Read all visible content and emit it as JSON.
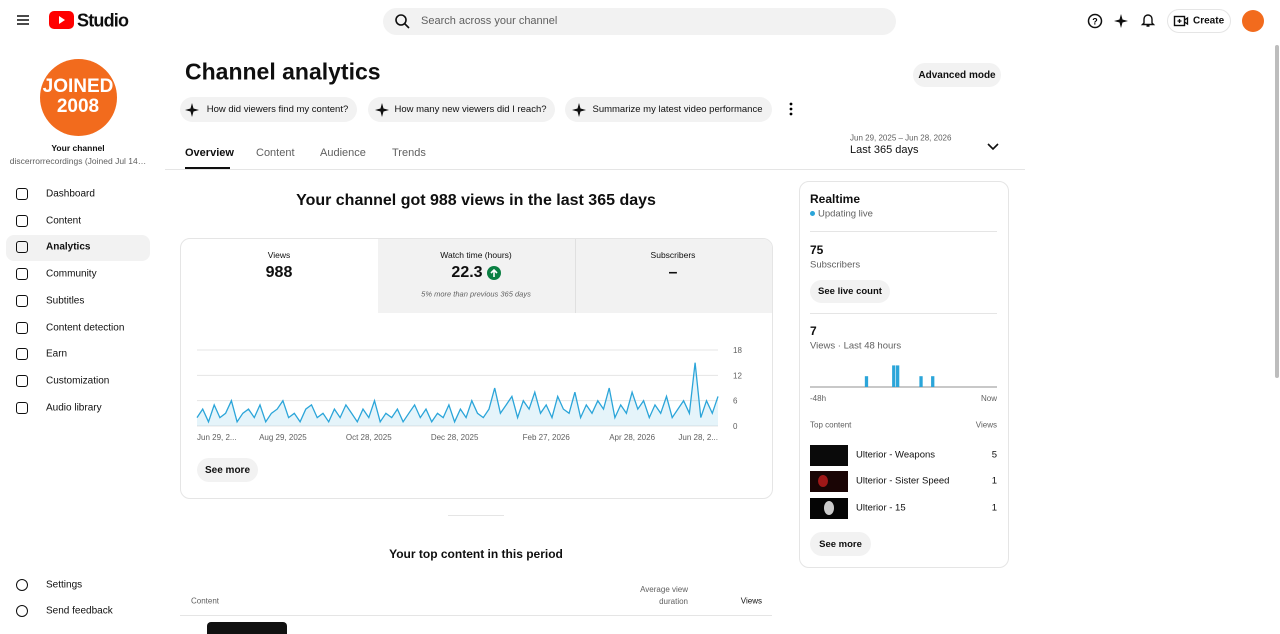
{
  "header": {
    "brand": "Studio",
    "search_placeholder": "Search across your channel",
    "create": "Create"
  },
  "sidebar": {
    "avatar": [
      "JOINED",
      "2008"
    ],
    "your_channel": "Your channel",
    "channel_name": "discerrorrecordings (Joined Jul 14…",
    "nav": [
      "Dashboard",
      "Content",
      "Analytics",
      "Community",
      "Subtitles",
      "Content detection",
      "Earn",
      "Customization",
      "Audio library"
    ],
    "footer": [
      "Settings",
      "Send feedback"
    ]
  },
  "main": {
    "title": "Channel analytics",
    "advanced_mode": "Advanced mode",
    "prompts": [
      "How did viewers find my content?",
      "How many new viewers did I reach?",
      "Summarize my latest video performance"
    ],
    "tabs": [
      "Overview",
      "Content",
      "Audience",
      "Trends"
    ],
    "date_range": "Jun 29, 2025 – Jun 28, 2026",
    "period": "Last 365 days",
    "headline": "Your channel got 988 views in the last 365 days",
    "metrics": [
      {
        "label": "Views",
        "value": 988
      },
      {
        "label": "Watch time (hours)",
        "value": 22.3,
        "note": "5% more than previous 365 days"
      },
      {
        "label": "Subscribers",
        "value": "–"
      }
    ],
    "see_more": "See more",
    "top_content_title": "Your top content in this period",
    "table_header": [
      "Content",
      "Average view duration",
      "Views"
    ]
  },
  "realtime": {
    "title": "Realtime",
    "status": "Updating live",
    "subscribers": 75,
    "subscribers_label": "Subscribers",
    "see_live_count": "See live count",
    "views": 7,
    "views_label": "Views · Last 48 hours",
    "top_content_label": "Top content",
    "views_header": "Views",
    "top_content": [
      {
        "title": "Ulterior - Weapons",
        "views": 5
      },
      {
        "title": "Ulterior - Sister Speed",
        "views": 1
      },
      {
        "title": "Ulterior - 15",
        "views": 1
      }
    ],
    "see_more": "See more"
  },
  "chart_data": [
    {
      "type": "line",
      "color": "#2ba5d9",
      "values": [
        2,
        4,
        1,
        5,
        2,
        3,
        6,
        1,
        3,
        4,
        2,
        5,
        1,
        3,
        4,
        6,
        2,
        3,
        1,
        4,
        5,
        2,
        3,
        1,
        4,
        2,
        5,
        3,
        1,
        4,
        2,
        6,
        1,
        3,
        2,
        4,
        1,
        3,
        5,
        2,
        4,
        1,
        3,
        2,
        5,
        1,
        4,
        2,
        6,
        3,
        2,
        4,
        9,
        3,
        5,
        7,
        2,
        6,
        4,
        8,
        3,
        5,
        2,
        7,
        4,
        3,
        8,
        2,
        5,
        3,
        6,
        4,
        9,
        2,
        5,
        3,
        8,
        4,
        6,
        2,
        5,
        3,
        7,
        2,
        4,
        6,
        3,
        15,
        2,
        6,
        3,
        7
      ],
      "xlim": [
        0,
        91
      ],
      "xticks": [
        {
          "value": 0,
          "label": "Jun 29, 2..."
        },
        {
          "value": 15,
          "label": "Aug 29, 2025"
        },
        {
          "value": 30,
          "label": "Oct 28, 2025"
        },
        {
          "value": 45,
          "label": "Dec 28, 2025"
        },
        {
          "value": 61,
          "label": "Feb 27, 2026"
        },
        {
          "value": 76,
          "label": "Apr 28, 2026"
        },
        {
          "value": 91,
          "label": "Jun 28, 2..."
        }
      ],
      "ylim": [
        0,
        18
      ],
      "yticks": [
        0,
        6,
        12,
        18
      ],
      "grid": true
    },
    {
      "type": "bar",
      "color": "#2ba5d9",
      "values": [
        0,
        0,
        0,
        0,
        0,
        0,
        0,
        0,
        0,
        0,
        0,
        0,
        0,
        0,
        1,
        0,
        0,
        0,
        0,
        0,
        0,
        2,
        2,
        0,
        0,
        0,
        0,
        0,
        1,
        0,
        0,
        1,
        0,
        0,
        0,
        0,
        0,
        0,
        0,
        0,
        0,
        0,
        0,
        0,
        0,
        0,
        0,
        0
      ],
      "xlim": [
        -48,
        0
      ],
      "xticks": [
        {
          "value": -48,
          "label": "-48h"
        },
        {
          "value": 0,
          "label": "Now"
        }
      ],
      "ylim": [
        0,
        2.5
      ]
    }
  ]
}
